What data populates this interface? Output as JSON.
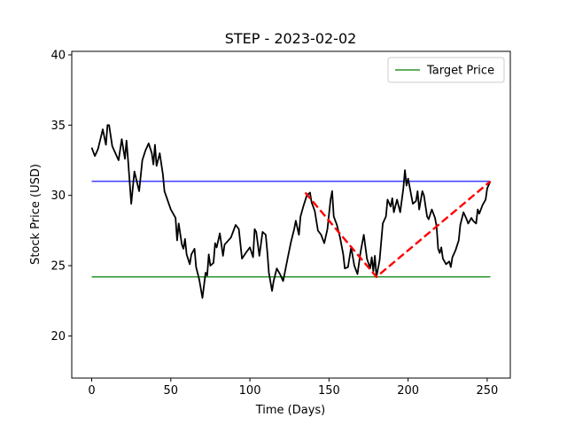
{
  "chart_data": {
    "type": "line",
    "title": "STEP - 2023-02-02",
    "x_label": "Time (Days)",
    "y_label": "Stock Price (USD)",
    "xlim": [
      -12.6,
      264.6
    ],
    "ylim": [
      17,
      40.25
    ],
    "xticks": [
      0,
      50,
      100,
      150,
      200,
      250
    ],
    "yticks": [
      20,
      25,
      30,
      35,
      40
    ],
    "legend": "upper right",
    "price": {
      "color": "#000000",
      "x": [
        0,
        2,
        4,
        7,
        9,
        10,
        11,
        13,
        17,
        19,
        21,
        22,
        23,
        25,
        27,
        30,
        32,
        34,
        36,
        38,
        39,
        40,
        41,
        43,
        45,
        46,
        50,
        53,
        54,
        55,
        57,
        58,
        59,
        60,
        62,
        63,
        65,
        66,
        68,
        70,
        72,
        73,
        74,
        75,
        77,
        78,
        79,
        81,
        83,
        84,
        88,
        91,
        93,
        95,
        98,
        100,
        102,
        103,
        104,
        106,
        108,
        110,
        111,
        112,
        114,
        115,
        117,
        119,
        121,
        124,
        126,
        128,
        129,
        131,
        132,
        134,
        136,
        138,
        139,
        141,
        143,
        145,
        147,
        149,
        151,
        152,
        153,
        155,
        157,
        159,
        160,
        162,
        164,
        166,
        168,
        170,
        172,
        174,
        176,
        177,
        178,
        179,
        180,
        182,
        184,
        186,
        187,
        189,
        190,
        191,
        193,
        195,
        197,
        198,
        199,
        200,
        201,
        203,
        205,
        206,
        207,
        209,
        210,
        212,
        213,
        215,
        217,
        218,
        219,
        220,
        221,
        222,
        224,
        226,
        227,
        228,
        230,
        232,
        233,
        235,
        237,
        238,
        240,
        241,
        243,
        244,
        245,
        247,
        249,
        250,
        252
      ],
      "values": [
        33.4,
        32.8,
        33.3,
        34.7,
        33.6,
        35.0,
        35.0,
        33.5,
        32.5,
        34.0,
        32.6,
        33.9,
        32.5,
        29.4,
        31.7,
        30.3,
        32.5,
        33.2,
        33.7,
        33.0,
        32.2,
        33.6,
        32.1,
        33.0,
        31.5,
        30.3,
        29.0,
        28.4,
        26.8,
        28.0,
        26.5,
        26.2,
        26.9,
        25.8,
        25.1,
        25.8,
        26.2,
        24.9,
        24.0,
        22.7,
        24.5,
        24.3,
        25.8,
        25.0,
        25.2,
        26.6,
        26.3,
        27.3,
        25.7,
        26.5,
        27.0,
        27.9,
        27.6,
        25.5,
        26.0,
        26.3,
        25.6,
        27.6,
        27.4,
        25.7,
        27.4,
        27.2,
        26.0,
        24.5,
        23.2,
        23.9,
        24.8,
        24.4,
        23.9,
        25.6,
        26.7,
        27.6,
        28.2,
        27.2,
        28.5,
        29.3,
        30.0,
        30.2,
        29.5,
        28.9,
        27.5,
        27.2,
        26.6,
        27.6,
        29.7,
        30.3,
        28.5,
        27.9,
        27.0,
        25.8,
        24.8,
        24.9,
        26.3,
        25.0,
        24.4,
        26.0,
        27.2,
        25.5,
        24.8,
        25.6,
        24.6,
        25.7,
        24.2,
        25.4,
        28.0,
        28.5,
        29.7,
        29.2,
        29.8,
        28.8,
        29.7,
        28.8,
        30.5,
        31.8,
        30.7,
        31.2,
        30.6,
        29.4,
        29.6,
        30.3,
        29.0,
        30.3,
        30.0,
        28.5,
        28.3,
        29.0,
        28.4,
        27.8,
        26.2,
        25.9,
        26.3,
        25.5,
        25.1,
        25.3,
        24.9,
        25.6,
        26.1,
        26.8,
        27.9,
        28.8,
        28.3,
        28.0,
        28.4,
        28.2,
        28.0,
        29.0,
        28.7,
        29.3,
        29.7,
        30.5,
        31.0
      ]
    },
    "levels": [
      {
        "name": "Target Price",
        "color": "#008000",
        "value": 24.2,
        "x": [
          0,
          252
        ]
      },
      {
        "color": "#0000ff",
        "value": 31.0,
        "x": [
          0,
          252
        ]
      }
    ],
    "pattern": {
      "color": "#ff0000",
      "x": [
        135,
        180,
        252
      ],
      "values": [
        30.2,
        24.2,
        31.0
      ]
    }
  }
}
